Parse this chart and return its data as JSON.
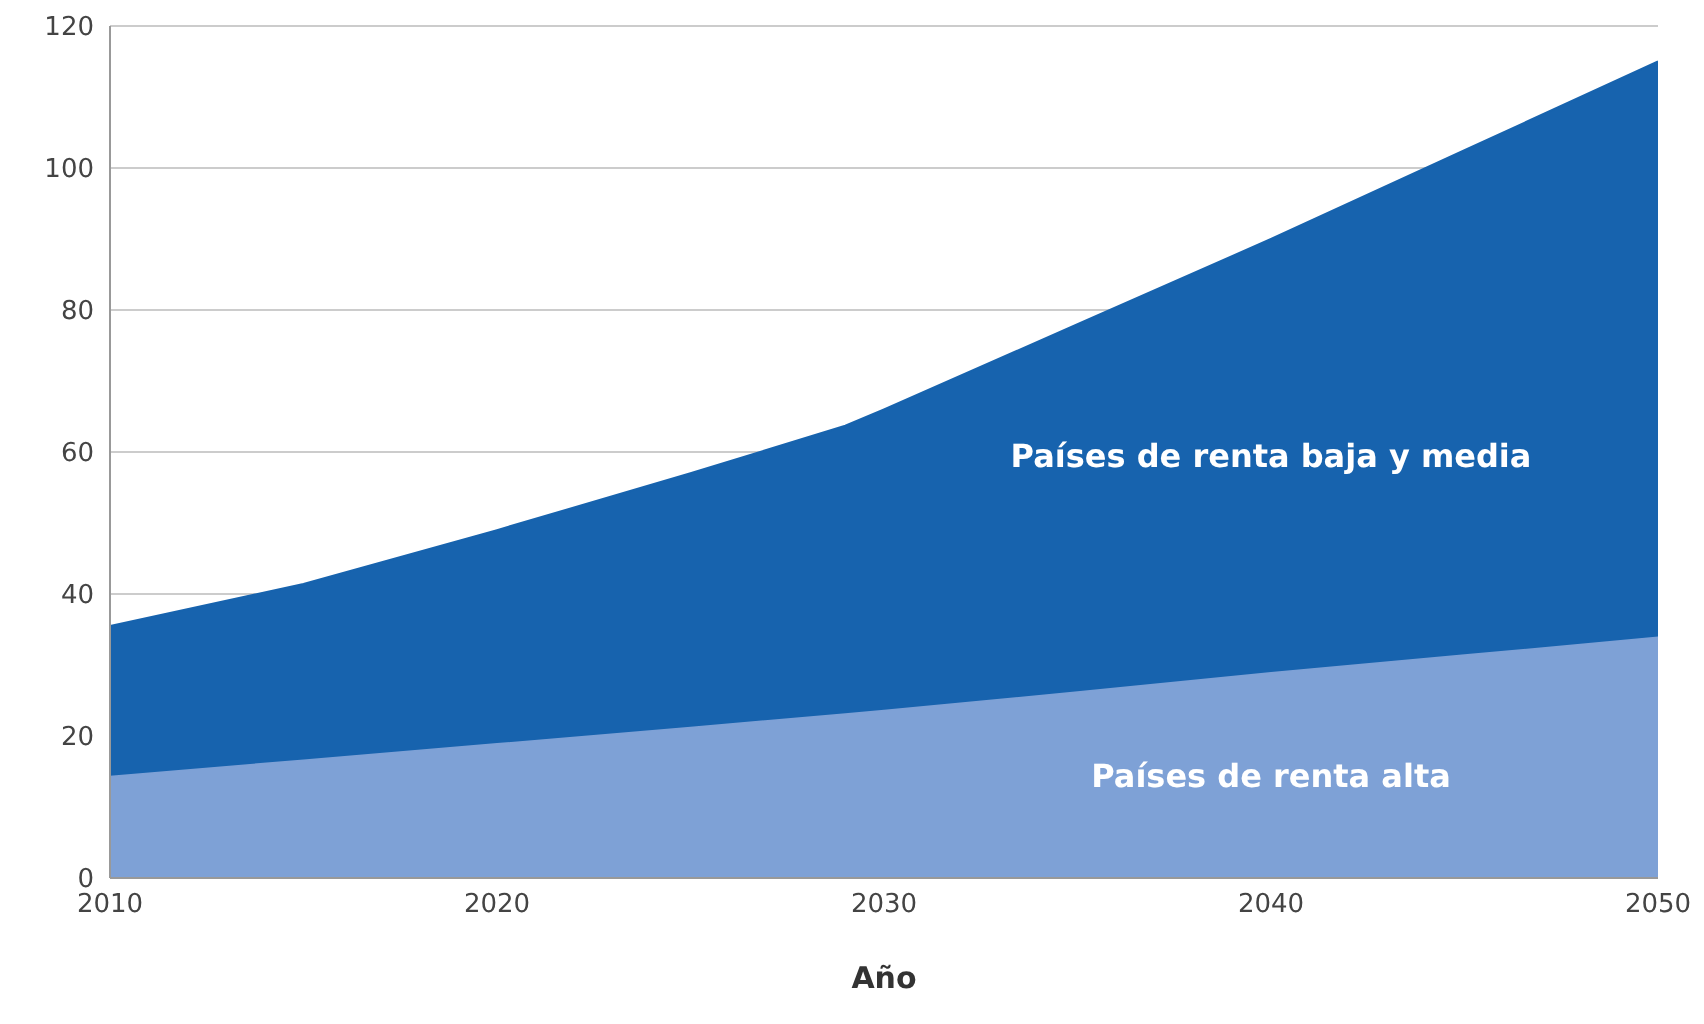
{
  "chart_data": {
    "type": "area",
    "stacked": true,
    "xlabel": "Año",
    "x": [
      2010,
      2015,
      2020,
      2025,
      2029,
      2030,
      2035,
      2040,
      2045,
      2050
    ],
    "series": [
      {
        "name": "Países de renta alta",
        "color": "#7ea1d6",
        "values": [
          14.4,
          16.7,
          19,
          21.3,
          23.2,
          23.7,
          26.3,
          29,
          31.5,
          34
        ]
      },
      {
        "name": "Países de renta baja y media",
        "color": "#1763ae",
        "values": [
          21.1,
          24.7,
          30,
          35.7,
          40.5,
          42.3,
          51.7,
          61,
          71,
          81
        ]
      }
    ],
    "xlim": [
      2010,
      2050
    ],
    "xticks": [
      2010,
      2020,
      2030,
      2040,
      2050
    ],
    "ylim": [
      0,
      120
    ],
    "yticks": [
      0,
      20,
      40,
      60,
      80,
      100,
      120
    ],
    "grid": "y",
    "legend": false
  }
}
